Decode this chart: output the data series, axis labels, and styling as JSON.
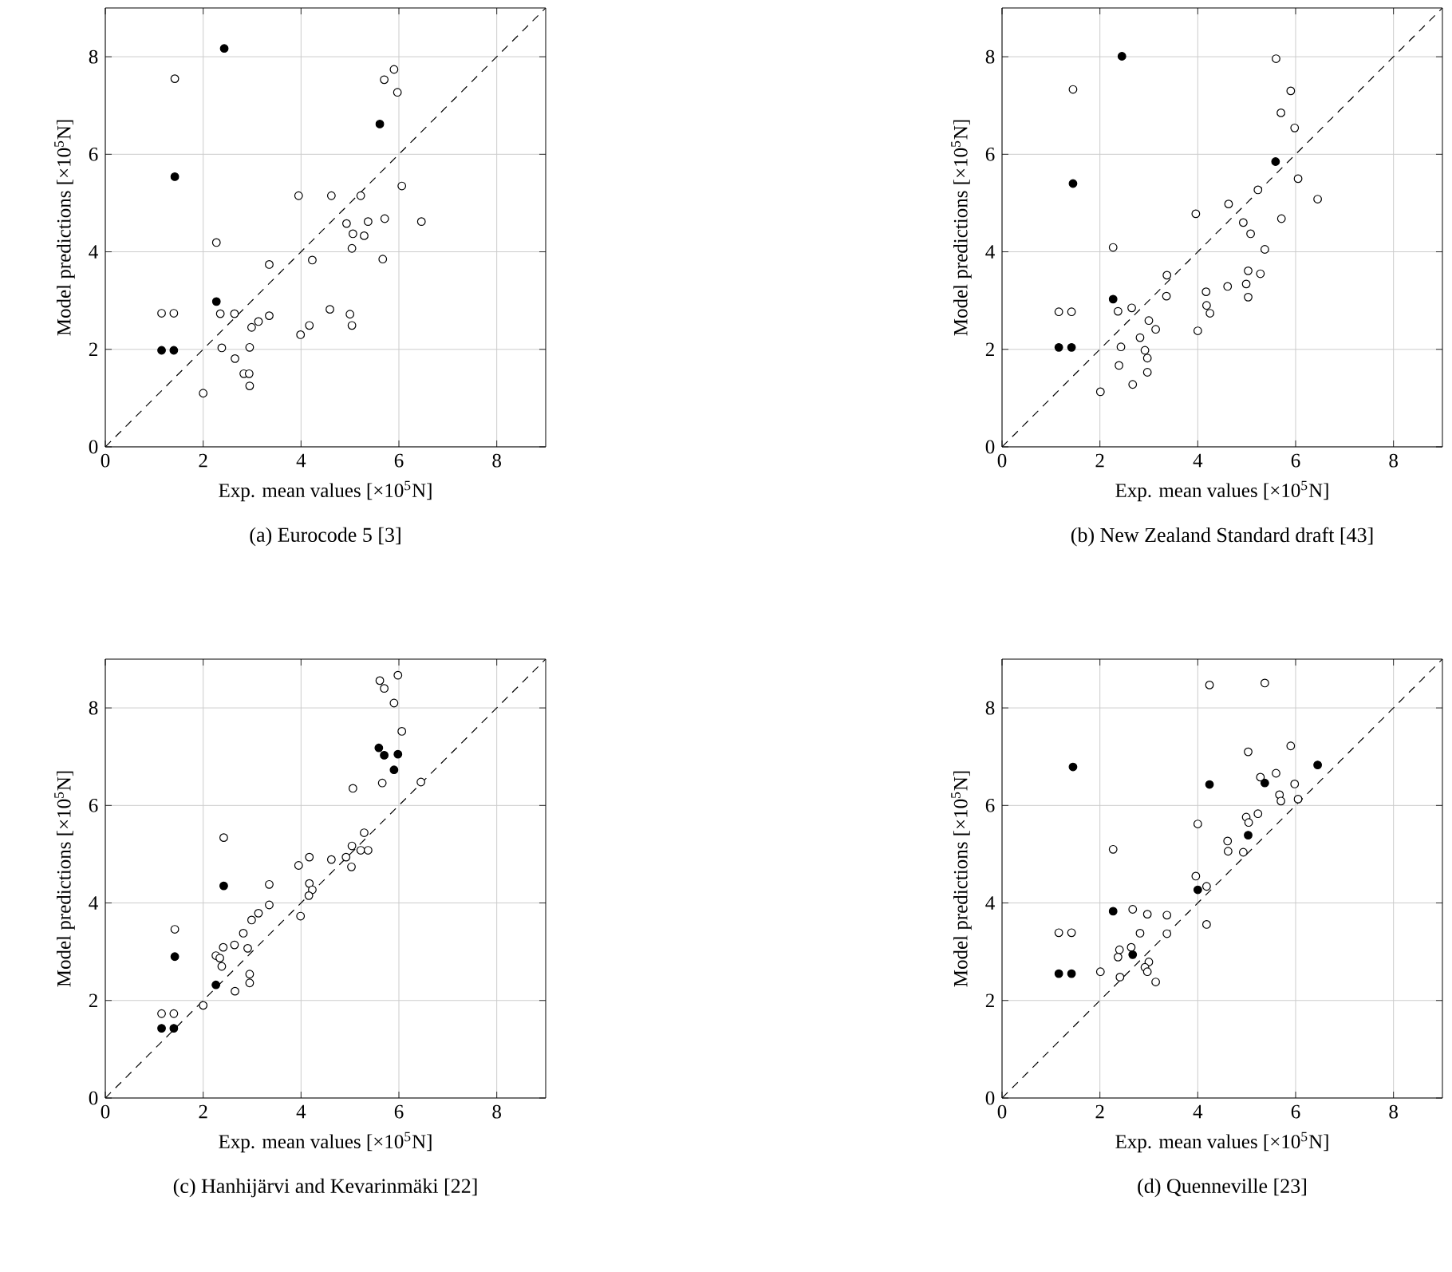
{
  "chart_data": [
    {
      "type": "scatter",
      "title": "(a) Eurocode 5 [3]",
      "xlabel": "Exp. mean values [×10$^{5}$N]",
      "ylabel": "Model predictions [×10$^{5}$N]",
      "xlim": [
        0,
        9
      ],
      "ylim": [
        0,
        9
      ],
      "xticks": [
        0,
        2,
        4,
        6,
        8
      ],
      "yticks": [
        0,
        2,
        4,
        6,
        8
      ],
      "grid": true,
      "marker": "circle",
      "series": [
        {
          "color": "#ffffff",
          "x": [
            1.42,
            5.9,
            5.7,
            5.97,
            6.06,
            3.95,
            4.62,
            5.22,
            4.93,
            5.37,
            5.71,
            6.46,
            5.06,
            5.29,
            5.04,
            5.67,
            2.27,
            3.35,
            4.23,
            1.15,
            1.4,
            2.35,
            2.64,
            3.35,
            3.13,
            2.99,
            4.59,
            5.0,
            5.04,
            4.17,
            3.99,
            2.38,
            2.95,
            2.65,
            2.83,
            2.94,
            2.95,
            2.0
          ],
          "values": [
            7.55,
            7.74,
            7.53,
            7.27,
            5.35,
            5.15,
            5.15,
            5.15,
            4.58,
            4.62,
            4.68,
            4.62,
            4.37,
            4.33,
            4.07,
            3.85,
            4.19,
            3.74,
            3.83,
            2.74,
            2.74,
            2.73,
            2.73,
            2.69,
            2.57,
            2.45,
            2.82,
            2.72,
            2.49,
            2.49,
            2.3,
            2.03,
            2.04,
            1.81,
            1.5,
            1.5,
            1.25,
            1.1
          ]
        },
        {
          "color": "#000000",
          "x": [
            2.43,
            5.61,
            1.42,
            2.27,
            1.15,
            1.4
          ],
          "values": [
            8.17,
            6.62,
            5.54,
            2.98,
            1.98,
            1.98
          ]
        },
        {
          "type": "line",
          "marker": "none",
          "color": "#000000",
          "line_style": "dashed",
          "x": [
            0,
            9
          ],
          "values": [
            0,
            9
          ]
        }
      ]
    },
    {
      "type": "scatter",
      "title": "(b) New Zealand Standard draft [43]",
      "xlabel": "Exp. mean values [×10$^{5}$N]",
      "ylabel": "Model predictions [×10$^{5}$N]",
      "xlim": [
        0,
        9
      ],
      "ylim": [
        0,
        9
      ],
      "xticks": [
        0,
        2,
        4,
        6,
        8
      ],
      "yticks": [
        0,
        2,
        4,
        6,
        8
      ],
      "grid": true,
      "marker": "circle",
      "series": [
        {
          "color": "#ffffff",
          "x": [
            1.45,
            5.6,
            5.9,
            5.7,
            5.98,
            6.05,
            5.23,
            6.45,
            4.63,
            3.96,
            5.71,
            4.93,
            5.08,
            5.37,
            2.27,
            5.03,
            5.28,
            4.61,
            4.99,
            5.03,
            3.37,
            3.36,
            4.17,
            4.18,
            4.25,
            1.16,
            1.42,
            2.37,
            2.65,
            3.0,
            3.14,
            4.0,
            2.82,
            2.43,
            2.92,
            2.97,
            2.39,
            2.97,
            2.67,
            2.01
          ],
          "values": [
            7.33,
            7.96,
            7.3,
            6.85,
            6.54,
            5.5,
            5.27,
            5.08,
            4.98,
            4.78,
            4.68,
            4.6,
            4.37,
            4.05,
            4.09,
            3.61,
            3.55,
            3.29,
            3.34,
            3.07,
            3.52,
            3.09,
            3.18,
            2.9,
            2.74,
            2.77,
            2.77,
            2.78,
            2.85,
            2.59,
            2.41,
            2.38,
            2.24,
            2.05,
            1.98,
            1.82,
            1.67,
            1.53,
            1.28,
            1.13
          ]
        },
        {
          "color": "#000000",
          "x": [
            2.45,
            5.59,
            1.45,
            2.27,
            1.16,
            1.42
          ],
          "values": [
            8.01,
            5.85,
            5.4,
            3.03,
            2.04,
            2.04
          ]
        },
        {
          "type": "line",
          "marker": "none",
          "color": "#000000",
          "line_style": "dashed",
          "x": [
            0,
            9
          ],
          "values": [
            0,
            9
          ]
        }
      ]
    },
    {
      "type": "scatter",
      "title": "(c) Hanhijärvi and Kevarinmäki [22]",
      "xlabel": "Exp. mean values [×10$^{5}$N]",
      "ylabel": "Model predictions [×10$^{5}$N]",
      "xlim": [
        0,
        9
      ],
      "ylim": [
        0,
        9
      ],
      "xticks": [
        0,
        2,
        4,
        6,
        8
      ],
      "yticks": [
        0,
        2,
        4,
        6,
        8
      ],
      "grid": true,
      "marker": "circle",
      "series": [
        {
          "color": "#ffffff",
          "x": [
            5.98,
            5.61,
            5.7,
            5.9,
            6.06,
            5.66,
            6.45,
            5.06,
            2.42,
            5.29,
            5.04,
            5.22,
            5.37,
            4.92,
            4.62,
            4.17,
            3.95,
            5.03,
            3.35,
            4.17,
            4.23,
            4.16,
            3.35,
            3.13,
            2.99,
            3.99,
            1.42,
            2.82,
            2.41,
            2.64,
            2.91,
            2.26,
            2.34,
            2.38,
            2.95,
            2.95,
            2.65,
            2.0,
            1.15,
            1.4
          ],
          "values": [
            8.67,
            8.56,
            8.4,
            8.1,
            7.52,
            6.46,
            6.48,
            6.35,
            5.34,
            5.44,
            5.17,
            5.08,
            5.08,
            4.94,
            4.89,
            4.94,
            4.77,
            4.74,
            4.38,
            4.4,
            4.27,
            4.15,
            3.96,
            3.79,
            3.65,
            3.73,
            3.46,
            3.38,
            3.09,
            3.14,
            3.07,
            2.92,
            2.87,
            2.7,
            2.54,
            2.36,
            2.19,
            1.9,
            1.73,
            1.73
          ]
        },
        {
          "color": "#000000",
          "x": [
            5.59,
            5.7,
            5.98,
            5.9,
            2.42,
            1.42,
            2.26,
            1.15,
            1.4
          ],
          "values": [
            7.18,
            7.03,
            7.05,
            6.73,
            4.35,
            2.9,
            2.32,
            1.43,
            1.43
          ]
        },
        {
          "type": "line",
          "marker": "none",
          "color": "#000000",
          "line_style": "dashed",
          "x": [
            0,
            9
          ],
          "values": [
            0,
            9
          ]
        }
      ]
    },
    {
      "type": "scatter",
      "title": "(d) Quenneville [23]",
      "xlabel": "Exp. mean values [×10$^{5}$N]",
      "ylabel": "Model predictions [×10$^{5}$N]",
      "xlim": [
        0,
        9
      ],
      "ylim": [
        0,
        9
      ],
      "xticks": [
        0,
        2,
        4,
        6,
        8
      ],
      "yticks": [
        0,
        2,
        4,
        6,
        8
      ],
      "grid": true,
      "marker": "circle",
      "series": [
        {
          "color": "#ffffff",
          "x": [
            4.24,
            5.37,
            5.9,
            5.03,
            5.6,
            5.28,
            5.98,
            5.67,
            5.7,
            6.05,
            4.0,
            4.99,
            5.23,
            5.04,
            2.27,
            4.61,
            4.62,
            4.93,
            3.96,
            4.18,
            4.18,
            2.67,
            2.97,
            3.37,
            3.37,
            2.82,
            1.16,
            1.42,
            2.4,
            2.37,
            2.64,
            3.0,
            2.92,
            2.97,
            3.14,
            2.41,
            2.01
          ],
          "values": [
            8.47,
            8.51,
            7.22,
            7.1,
            6.66,
            6.58,
            6.44,
            6.22,
            6.09,
            6.13,
            5.62,
            5.76,
            5.83,
            5.65,
            5.1,
            5.27,
            5.06,
            5.04,
            4.55,
            4.34,
            3.56,
            3.87,
            3.77,
            3.75,
            3.37,
            3.38,
            3.39,
            3.39,
            3.04,
            2.89,
            3.09,
            2.79,
            2.68,
            2.59,
            2.38,
            2.48,
            2.59
          ]
        },
        {
          "color": "#000000",
          "x": [
            1.45,
            6.45,
            5.37,
            4.24,
            5.03,
            4.0,
            2.27,
            2.67,
            1.16,
            1.42
          ],
          "values": [
            6.79,
            6.83,
            6.46,
            6.43,
            5.39,
            4.27,
            3.83,
            2.94,
            2.55,
            2.55
          ]
        },
        {
          "type": "line",
          "marker": "none",
          "color": "#000000",
          "line_style": "dashed",
          "x": [
            0,
            9
          ],
          "values": [
            0,
            9
          ]
        }
      ]
    }
  ]
}
